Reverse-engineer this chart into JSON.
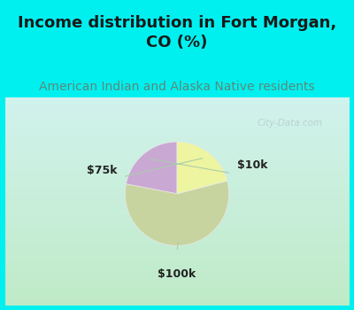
{
  "title": "Income distribution in Fort Morgan,\nCO (%)",
  "subtitle": "American Indian and Alaska Native residents",
  "slices": [
    {
      "label": "$10k",
      "value": 22,
      "color": "#c9a8d4"
    },
    {
      "label": "$100k",
      "value": 57,
      "color": "#c8d4a0"
    },
    {
      "label": "$75k",
      "value": 21,
      "color": "#eef5a0"
    }
  ],
  "title_color": "#1a1a1a",
  "subtitle_color": "#5a8a7a",
  "title_fontsize": 13,
  "subtitle_fontsize": 10,
  "label_fontsize": 9,
  "watermark": "City-Data.com",
  "bg_top": "#00f0f0",
  "bg_chart_topleft": "#d0efe8",
  "bg_chart_bottomright": "#c0e8c0",
  "startangle": 90
}
